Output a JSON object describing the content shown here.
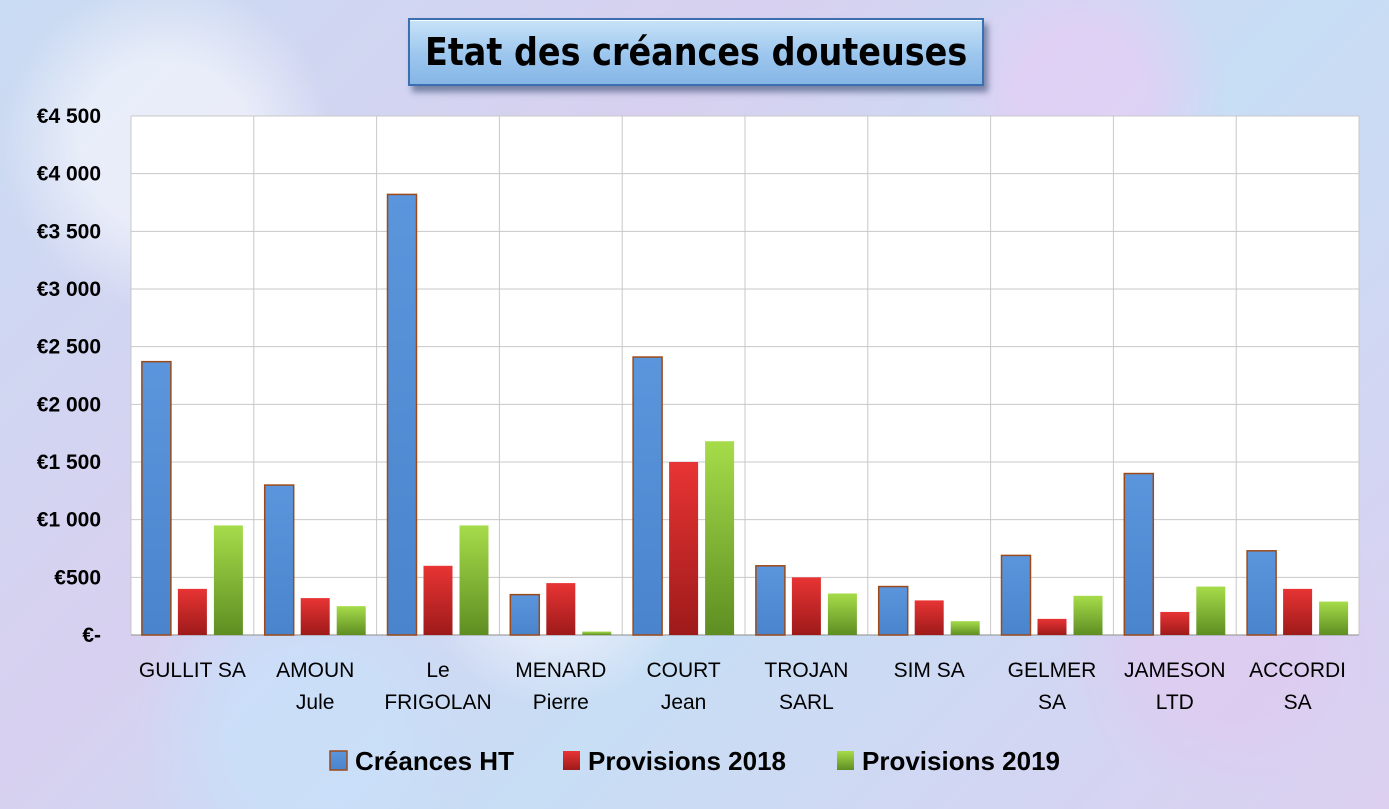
{
  "chart_data": {
    "type": "bar",
    "title": "Etat des créances douteuses",
    "xlabel": "",
    "ylabel": "",
    "ylim": [
      0,
      4500
    ],
    "y_ticks": [
      {
        "value": 0,
        "label": "€-"
      },
      {
        "value": 500,
        "label": "€500"
      },
      {
        "value": 1000,
        "label": "€1 000"
      },
      {
        "value": 1500,
        "label": "€1 500"
      },
      {
        "value": 2000,
        "label": "€2 000"
      },
      {
        "value": 2500,
        "label": "€2 500"
      },
      {
        "value": 3000,
        "label": "€3 000"
      },
      {
        "value": 3500,
        "label": "€3 500"
      },
      {
        "value": 4000,
        "label": "€4 000"
      },
      {
        "value": 4500,
        "label": "€4 500"
      }
    ],
    "categories": [
      [
        "GULLIT SA"
      ],
      [
        "AMOUN",
        "Jule"
      ],
      [
        "Le",
        "FRIGOLAN"
      ],
      [
        "MENARD",
        "Pierre"
      ],
      [
        "COURT",
        "Jean"
      ],
      [
        "TROJAN",
        "SARL"
      ],
      [
        "SIM SA"
      ],
      [
        "GELMER",
        "SA"
      ],
      [
        "JAMESON",
        "LTD"
      ],
      [
        "ACCORDI",
        "SA"
      ]
    ],
    "series": [
      {
        "name": "Créances HT",
        "color": "#558ed5",
        "values": [
          2370,
          1300,
          3820,
          350,
          2410,
          600,
          420,
          690,
          1400,
          730
        ]
      },
      {
        "name": "Provisions 2018",
        "color": "#d42a2a",
        "values": [
          400,
          320,
          600,
          450,
          1500,
          500,
          300,
          140,
          200,
          400
        ]
      },
      {
        "name": "Provisions 2019",
        "color": "#92c83e",
        "values": [
          950,
          250,
          950,
          30,
          1680,
          360,
          120,
          340,
          420,
          290
        ]
      }
    ],
    "grid": true,
    "legend_position": "bottom"
  }
}
